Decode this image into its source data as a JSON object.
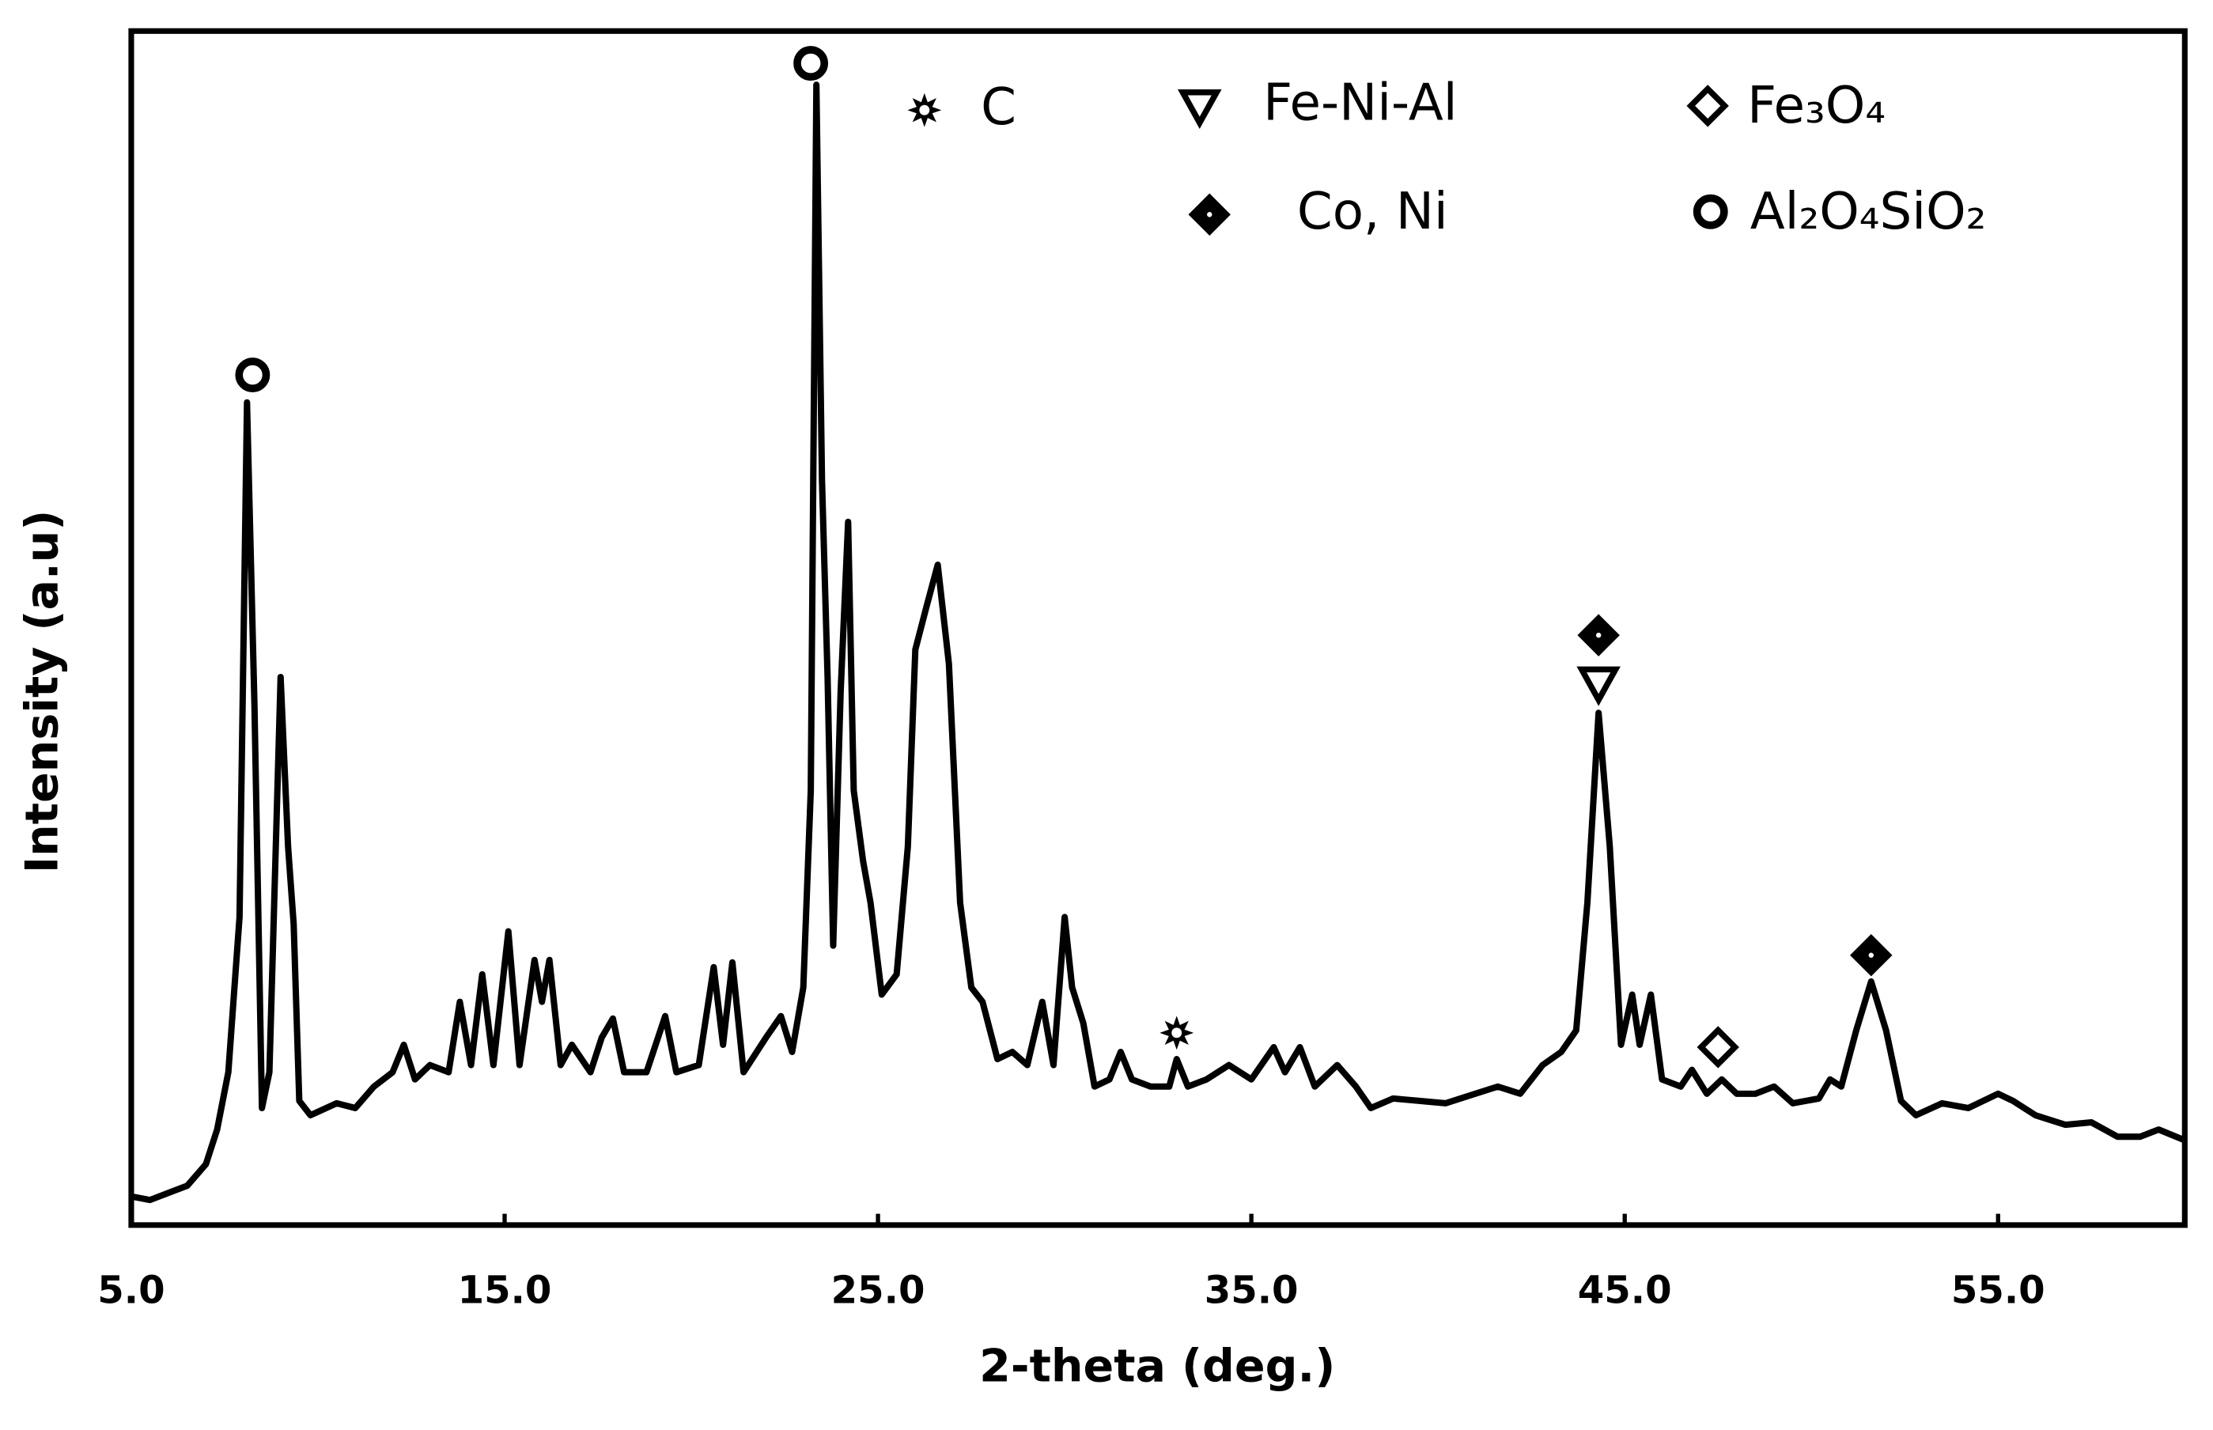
{
  "chart_data": {
    "type": "line",
    "xlabel": "2-theta (deg.)",
    "ylabel": "Intensity (a.u)",
    "xlim": [
      5,
      60
    ],
    "ylim": [
      0,
      100
    ],
    "xticks": [
      {
        "value": 5,
        "label": "5.0"
      },
      {
        "value": 15,
        "label": "15.0"
      },
      {
        "value": 25,
        "label": "25.0"
      },
      {
        "value": 35,
        "label": "35.0"
      },
      {
        "value": 45,
        "label": "45.0"
      },
      {
        "value": 55,
        "label": "55.0"
      }
    ],
    "color": "#000000",
    "x": [
      5.0,
      5.5,
      6.0,
      6.5,
      7.0,
      7.3,
      7.6,
      7.9,
      8.1,
      8.3,
      8.5,
      8.7,
      9.0,
      9.2,
      9.35,
      9.5,
      9.8,
      10.5,
      11.0,
      11.5,
      12.0,
      12.3,
      12.6,
      13.0,
      13.5,
      13.8,
      14.1,
      14.4,
      14.7,
      15.1,
      15.4,
      15.8,
      16.0,
      16.2,
      16.5,
      16.8,
      17.3,
      17.6,
      17.9,
      18.2,
      18.8,
      19.3,
      19.6,
      20.2,
      20.6,
      20.85,
      21.1,
      21.4,
      22.0,
      22.4,
      22.7,
      23.0,
      23.2,
      23.35,
      23.5,
      23.65,
      23.8,
      24.0,
      24.2,
      24.35,
      24.6,
      24.8,
      25.1,
      25.5,
      25.8,
      26.0,
      26.3,
      26.6,
      26.9,
      27.2,
      27.5,
      27.8,
      28.2,
      28.6,
      29.0,
      29.4,
      29.7,
      30.0,
      30.2,
      30.5,
      30.8,
      31.2,
      31.5,
      31.8,
      32.3,
      32.8,
      33.0,
      33.3,
      33.8,
      34.4,
      35.0,
      35.6,
      35.9,
      36.3,
      36.7,
      37.3,
      37.8,
      38.2,
      38.8,
      39.5,
      40.2,
      41.0,
      41.6,
      42.2,
      42.8,
      43.3,
      43.7,
      44.0,
      44.3,
      44.6,
      44.9,
      45.2,
      45.4,
      45.7,
      46.0,
      46.5,
      46.8,
      47.2,
      47.6,
      48.0,
      48.5,
      49.0,
      49.5,
      50.2,
      50.5,
      50.8,
      51.2,
      51.6,
      52.0,
      52.4,
      52.8,
      53.5,
      54.2,
      55.0,
      55.4,
      56.0,
      56.8,
      57.5,
      58.2,
      58.8,
      59.3,
      60.0
    ],
    "values": [
      2.4,
      2.1,
      2.7,
      3.3,
      5.1,
      8.0,
      12.8,
      25.8,
      68.9,
      43.5,
      9.8,
      12.8,
      45.9,
      31.7,
      25.2,
      10.4,
      9.2,
      10.2,
      9.8,
      11.6,
      12.8,
      15.1,
      12.2,
      13.4,
      12.8,
      18.7,
      13.4,
      21.0,
      13.4,
      24.6,
      13.4,
      22.2,
      18.7,
      22.2,
      13.4,
      15.1,
      12.8,
      15.7,
      17.3,
      12.8,
      12.8,
      17.5,
      12.8,
      13.4,
      21.6,
      15.1,
      22.0,
      12.8,
      15.7,
      17.5,
      14.5,
      19.9,
      36.4,
      95.5,
      62.4,
      45.9,
      23.4,
      44.7,
      58.9,
      36.4,
      30.5,
      27.0,
      19.3,
      21.0,
      31.7,
      48.2,
      51.8,
      55.3,
      47.0,
      27.0,
      19.9,
      18.7,
      13.9,
      14.5,
      13.4,
      18.7,
      13.4,
      25.8,
      19.9,
      16.9,
      11.6,
      12.2,
      14.5,
      12.2,
      11.6,
      11.6,
      13.9,
      11.6,
      12.2,
      13.4,
      12.2,
      14.9,
      12.8,
      14.9,
      11.6,
      13.4,
      11.6,
      9.8,
      10.6,
      10.4,
      10.2,
      11.0,
      11.6,
      11.0,
      13.4,
      14.5,
      16.3,
      27.0,
      42.9,
      31.7,
      15.1,
      19.3,
      15.1,
      19.3,
      12.2,
      11.6,
      13.0,
      11.0,
      12.2,
      11.0,
      11.0,
      11.6,
      10.2,
      10.6,
      12.2,
      11.6,
      16.3,
      20.4,
      16.3,
      10.4,
      9.2,
      10.2,
      9.8,
      11.0,
      10.4,
      9.2,
      8.4,
      8.6,
      7.4,
      7.4,
      8.0,
      7.1
    ],
    "markers": [
      {
        "symbol": "circle",
        "x": 8.25,
        "y": 71.2
      },
      {
        "symbol": "circle",
        "x": 23.2,
        "y": 97.3
      },
      {
        "symbol": "star",
        "x": 33.0,
        "y": 16.1
      },
      {
        "symbol": "diamond-filled",
        "x": 44.3,
        "y": 49.4
      },
      {
        "symbol": "triangle",
        "x": 44.3,
        "y": 45.4
      },
      {
        "symbol": "diamond",
        "x": 47.5,
        "y": 14.9
      },
      {
        "symbol": "diamond-filled",
        "x": 51.6,
        "y": 22.6
      }
    ],
    "legend": [
      {
        "symbol": "star",
        "label": "C"
      },
      {
        "symbol": "triangle",
        "label": "Fe-Ni-Al"
      },
      {
        "symbol": "diamond",
        "label": "Fe₃O₄"
      },
      {
        "symbol": "diamond-filled",
        "label": "Co, Ni"
      },
      {
        "symbol": "circle",
        "label": "Al₂O₄SiO₂"
      }
    ]
  }
}
